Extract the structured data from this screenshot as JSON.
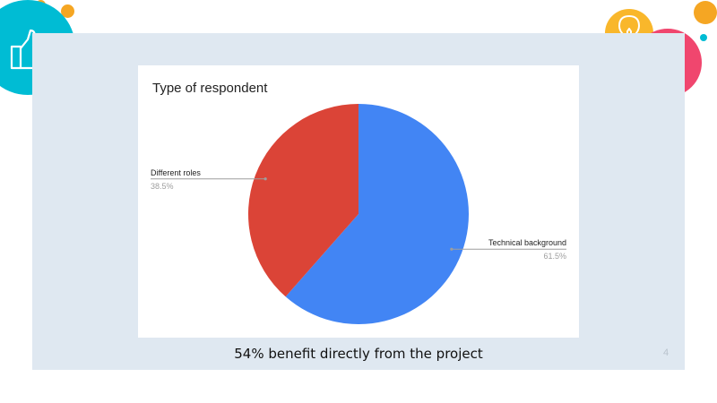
{
  "slide": {
    "caption": "54% benefit directly from the project",
    "page_number": "4"
  },
  "icons": {
    "left": "thumbs-up-icon",
    "right_top": "lightbulb-icon",
    "right_bottom": "puzzle-icon"
  },
  "colors": {
    "slide_bg": "#dfe8f1",
    "teal": "#00bcd4",
    "coral": "#ef5350",
    "orange": "#f5a623",
    "pink": "#f0466e",
    "amber": "#f9b72b"
  },
  "chart_data": {
    "type": "pie",
    "title": "Type of respondent",
    "slices": [
      {
        "label": "Technical background",
        "value": 61.5,
        "display": "61.5%",
        "color": "#4285f4"
      },
      {
        "label": "Different roles",
        "value": 38.5,
        "display": "38.5%",
        "color": "#db4437"
      }
    ],
    "legend": "none",
    "labels": "outside with leader lines"
  }
}
